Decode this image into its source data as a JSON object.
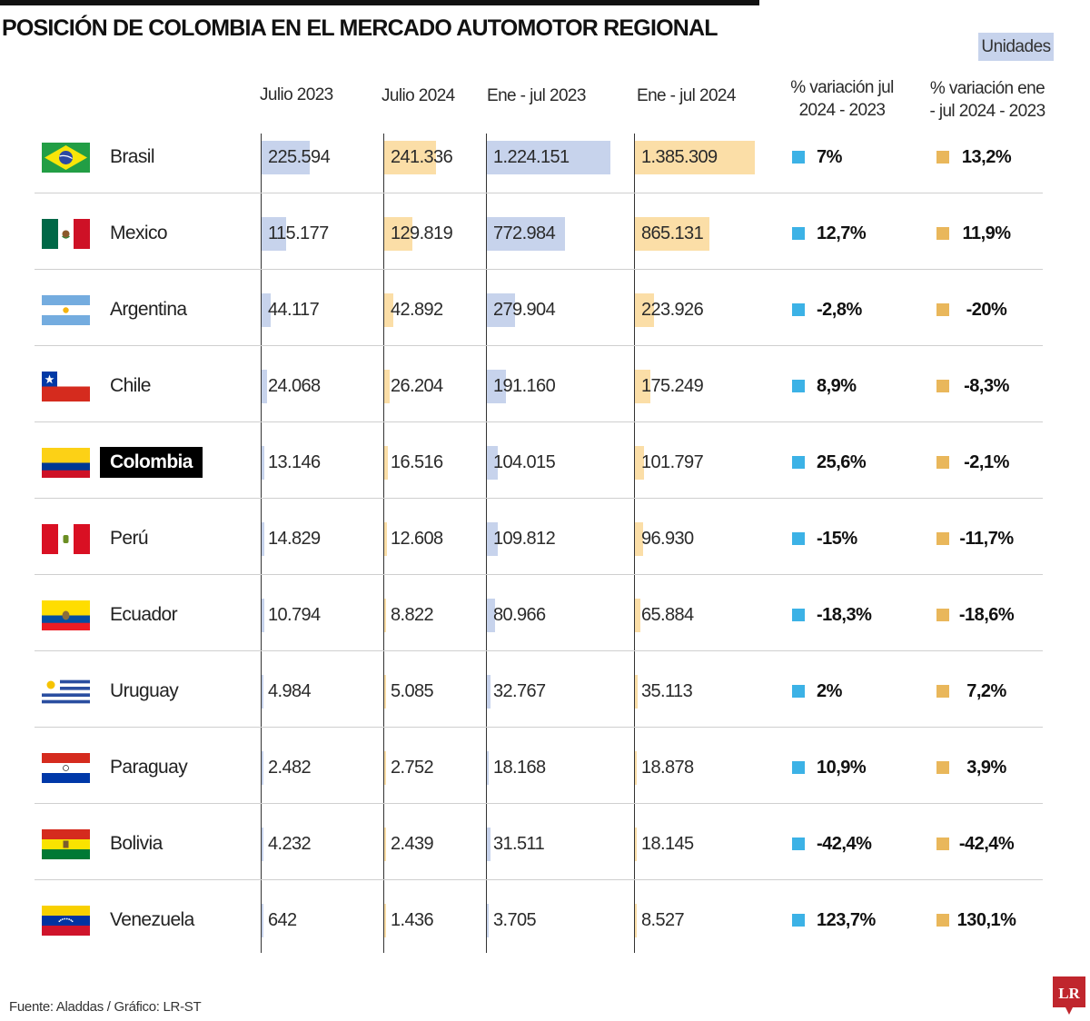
{
  "title": "POSICIÓN DE COLOMBIA EN EL MERCADO AUTOMOTOR REGIONAL",
  "units_label": "Unidades",
  "source": "Fuente: Aladdas / Gráfico: LR-ST",
  "logo_text": "LR",
  "colors": {
    "blue_bar": "#c7d3ec",
    "yellow_bar": "#fbdea7",
    "blue_marker": "#3cb2e6",
    "yellow_marker": "#e9b75b"
  },
  "chart_data": {
    "type": "bar",
    "columns": [
      "Julio 2023",
      "Julio 2024",
      "Ene - jul 2023",
      "Ene - jul 2024",
      "% variación jul 2024 - 2023",
      "% variación ene - jul 2024 - 2023"
    ],
    "highlight": "Colombia",
    "rows": [
      {
        "country": "Brasil",
        "flag": "brazil",
        "jul23": "225.594",
        "jul24": "241.336",
        "ej23": "1.224.151",
        "ej24": "1.385.309",
        "var_jul": "7%",
        "var_ej": "13,2%",
        "nums": [
          225594,
          241336,
          1224151,
          1385309
        ]
      },
      {
        "country": "Mexico",
        "flag": "mexico",
        "jul23": "115.177",
        "jul24": "129.819",
        "ej23": "772.984",
        "ej24": "865.131",
        "var_jul": "12,7%",
        "var_ej": "11,9%",
        "nums": [
          115177,
          129819,
          772984,
          865131
        ]
      },
      {
        "country": "Argentina",
        "flag": "argentina",
        "jul23": "44.117",
        "jul24": "42.892",
        "ej23": "279.904",
        "ej24": "223.926",
        "var_jul": "-2,8%",
        "var_ej": "-20%",
        "nums": [
          44117,
          42892,
          279904,
          223926
        ]
      },
      {
        "country": "Chile",
        "flag": "chile",
        "jul23": "24.068",
        "jul24": "26.204",
        "ej23": "191.160",
        "ej24": "175.249",
        "var_jul": "8,9%",
        "var_ej": "-8,3%",
        "nums": [
          24068,
          26204,
          191160,
          175249
        ]
      },
      {
        "country": "Colombia",
        "flag": "colombia",
        "jul23": "13.146",
        "jul24": "16.516",
        "ej23": "104.015",
        "ej24": "101.797",
        "var_jul": "25,6%",
        "var_ej": "-2,1%",
        "nums": [
          13146,
          16516,
          104015,
          101797
        ]
      },
      {
        "country": "Perú",
        "flag": "peru",
        "jul23": "14.829",
        "jul24": "12.608",
        "ej23": "109.812",
        "ej24": "96.930",
        "var_jul": "-15%",
        "var_ej": "-11,7%",
        "nums": [
          14829,
          12608,
          109812,
          96930
        ]
      },
      {
        "country": "Ecuador",
        "flag": "ecuador",
        "jul23": "10.794",
        "jul24": "8.822",
        "ej23": "80.966",
        "ej24": "65.884",
        "var_jul": "-18,3%",
        "var_ej": "-18,6%",
        "nums": [
          10794,
          8822,
          80966,
          65884
        ]
      },
      {
        "country": "Uruguay",
        "flag": "uruguay",
        "jul23": "4.984",
        "jul24": "5.085",
        "ej23": "32.767",
        "ej24": "35.113",
        "var_jul": "2%",
        "var_ej": "7,2%",
        "nums": [
          4984,
          5085,
          32767,
          35113
        ]
      },
      {
        "country": "Paraguay",
        "flag": "paraguay",
        "jul23": "2.482",
        "jul24": "2.752",
        "ej23": "18.168",
        "ej24": "18.878",
        "var_jul": "10,9%",
        "var_ej": "3,9%",
        "nums": [
          2482,
          2752,
          18168,
          18878
        ]
      },
      {
        "country": "Bolivia",
        "flag": "bolivia",
        "jul23": "4.232",
        "jul24": "2.439",
        "ej23": "31.511",
        "ej24": "18.145",
        "var_jul": "-42,4%",
        "var_ej": "-42,4%",
        "nums": [
          4232,
          2439,
          31511,
          18145
        ]
      },
      {
        "country": "Venezuela",
        "flag": "venezuela",
        "jul23": "642",
        "jul24": "1.436",
        "ej23": "3.705",
        "ej24": "8.527",
        "var_jul": "123,7%",
        "var_ej": "130,1%",
        "nums": [
          642,
          1436,
          3705,
          8527
        ]
      }
    ]
  }
}
